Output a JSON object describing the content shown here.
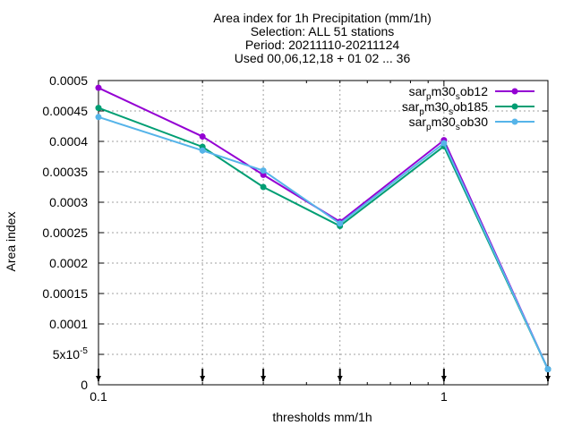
{
  "chart_data": {
    "type": "line",
    "title_lines": [
      "Area index  for 1h Precipitation (mm/1h)",
      "Selection: ALL      51 stations",
      "Period: 20211110-20211124",
      "Used 00,06,12,18 + 01 02 ... 36"
    ],
    "xlabel": "thresholds mm/1h",
    "ylabel": "Area index",
    "x_scale": "log",
    "xlim": [
      0.1,
      2
    ],
    "ylim": [
      0,
      0.0005
    ],
    "x_ticks": [
      {
        "value": 0.1,
        "label": "0.1"
      },
      {
        "value": 1,
        "label": "1"
      }
    ],
    "y_ticks": [
      {
        "value": 0,
        "label": "0"
      },
      {
        "value": 5e-05,
        "label": "5x10",
        "sup": "-5"
      },
      {
        "value": 0.0001,
        "label": "0.0001"
      },
      {
        "value": 0.00015,
        "label": "0.00015"
      },
      {
        "value": 0.0002,
        "label": "0.0002"
      },
      {
        "value": 0.00025,
        "label": "0.00025"
      },
      {
        "value": 0.0003,
        "label": "0.0003"
      },
      {
        "value": 0.00035,
        "label": "0.00035"
      },
      {
        "value": 0.0004,
        "label": "0.0004"
      },
      {
        "value": 0.00045,
        "label": "0.00045"
      },
      {
        "value": 0.0005,
        "label": "0.0005"
      }
    ],
    "grid": true,
    "legend_position": "top-right",
    "x": [
      0.1,
      0.2,
      0.3,
      0.5,
      1.0,
      2.0
    ],
    "series": [
      {
        "name_parts": [
          "sar",
          "p",
          "m30",
          "s",
          "ob12"
        ],
        "color": "#9400d3",
        "values": [
          0.000488,
          0.000408,
          0.000345,
          0.000268,
          0.000402,
          2.55e-05
        ]
      },
      {
        "name_parts": [
          "sar",
          "p",
          "m30",
          "s",
          "ob185"
        ],
        "color": "#009e73",
        "values": [
          0.000455,
          0.000391,
          0.000325,
          0.000261,
          0.000392,
          2.55e-05
        ]
      },
      {
        "name_parts": [
          "sar",
          "p",
          "m30",
          "s",
          "ob30"
        ],
        "color": "#56b4e9",
        "values": [
          0.00044,
          0.000385,
          0.000352,
          0.000265,
          0.000397,
          2.55e-05
        ]
      }
    ]
  }
}
